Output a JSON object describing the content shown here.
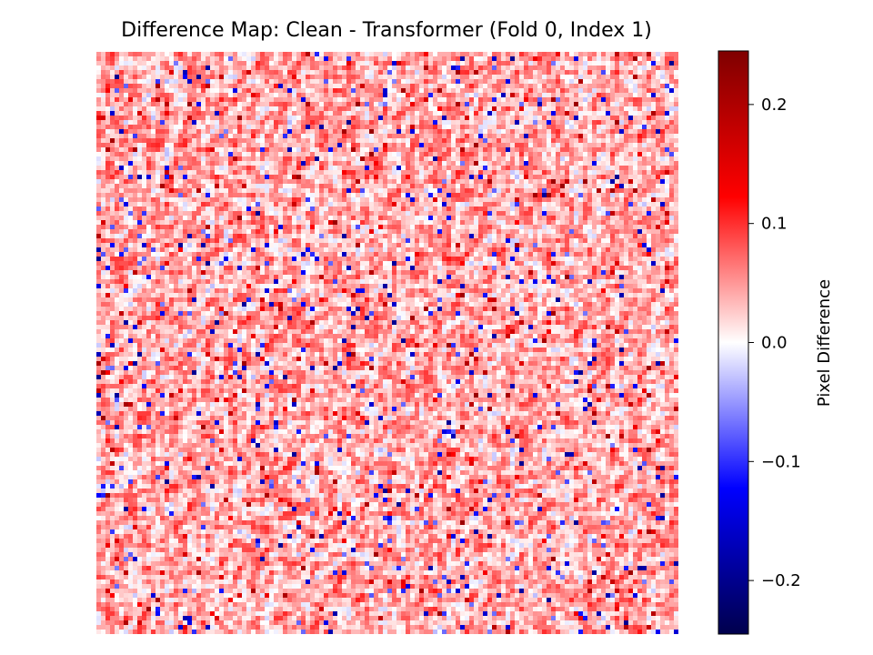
{
  "chart_data": {
    "type": "heatmap",
    "title": "Difference Map: Clean - Transformer (Fold 0, Index 1)",
    "xlabel": "",
    "ylabel": "",
    "axes_visible": false,
    "grid": false,
    "colormap": "seismic",
    "colormap_stops": [
      "#00004c",
      "#0000ff",
      "#ffffff",
      "#ff0000",
      "#7f0000"
    ],
    "vmin": -0.245,
    "vmax": 0.245,
    "matrix_shape": [
      128,
      128
    ],
    "value_distribution": {
      "mean": 0.04,
      "min": -0.2,
      "max": 0.22,
      "note_visible_pattern": "mostly light red with scattered blue pixels"
    },
    "colorbar": {
      "label": "Pixel Difference",
      "ticks": [
        0.2,
        0.1,
        0.0,
        -0.1,
        -0.2
      ],
      "tick_labels": [
        "0.2",
        "0.1",
        "0.0",
        "−0.1",
        "−0.2"
      ]
    }
  }
}
